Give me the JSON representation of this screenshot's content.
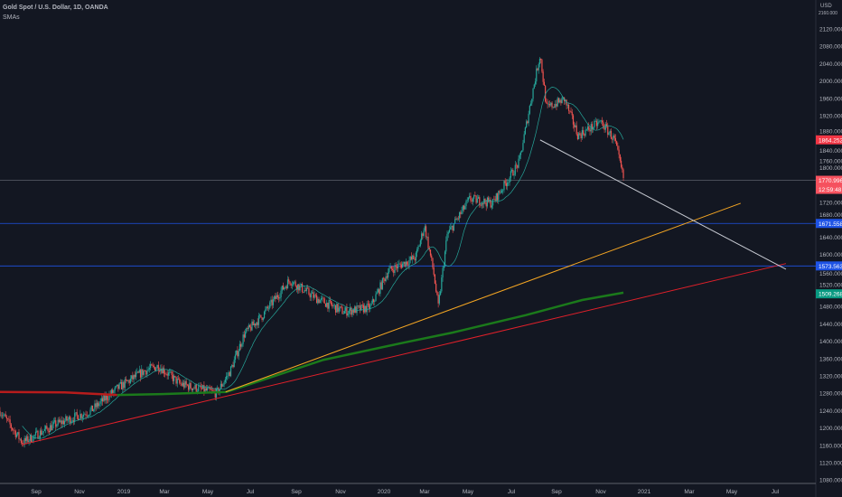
{
  "header": {
    "title": "Gold Spot / U.S. Dollar, 1D, OANDA",
    "indicator": "SMAs"
  },
  "axis": {
    "currency": "USD",
    "top_partial": "2160.000"
  },
  "chart_data": {
    "type": "candlestick",
    "title": "Gold Spot / U.S. Dollar, 1D, OANDA",
    "ylim": [
      1080,
      2120
    ],
    "yticks": [
      "2120.000",
      "2080.000",
      "2040.000",
      "2000.000",
      "1960.000",
      "1920.000",
      "1880.000",
      "1840.000",
      "1800.000",
      "1760.000",
      "1720.000",
      "1680.000",
      "1640.000",
      "1600.000",
      "1560.000",
      "1520.000",
      "1480.000",
      "1440.000",
      "1400.000",
      "1360.000",
      "1320.000",
      "1280.000",
      "1240.000",
      "1200.000",
      "1160.000",
      "1120.000",
      "1080.000"
    ],
    "xticks": [
      "Sep",
      "Nov",
      "2019",
      "Mar",
      "May",
      "Jul",
      "Sep",
      "Nov",
      "2020",
      "Mar",
      "May",
      "Jul",
      "Sep",
      "Nov",
      "2021",
      "Mar",
      "May",
      "Jul"
    ],
    "price_path": [
      [
        0,
        1239
      ],
      [
        0.028,
        1166
      ],
      [
        0.067,
        1207
      ],
      [
        0.112,
        1239
      ],
      [
        0.145,
        1291
      ],
      [
        0.179,
        1332
      ],
      [
        0.196,
        1343
      ],
      [
        0.223,
        1301
      ],
      [
        0.268,
        1280
      ],
      [
        0.285,
        1332
      ],
      [
        0.302,
        1416
      ],
      [
        0.324,
        1458
      ],
      [
        0.358,
        1541
      ],
      [
        0.391,
        1499
      ],
      [
        0.425,
        1468
      ],
      [
        0.458,
        1478
      ],
      [
        0.48,
        1562
      ],
      [
        0.514,
        1593
      ],
      [
        0.525,
        1666
      ],
      [
        0.536,
        1562
      ],
      [
        0.542,
        1478
      ],
      [
        0.553,
        1645
      ],
      [
        0.581,
        1728
      ],
      [
        0.609,
        1718
      ],
      [
        0.642,
        1812
      ],
      [
        0.659,
        1978
      ],
      [
        0.668,
        2062
      ],
      [
        0.676,
        1937
      ],
      [
        0.698,
        1958
      ],
      [
        0.715,
        1874
      ],
      [
        0.743,
        1906
      ],
      [
        0.76,
        1864
      ],
      [
        0.771,
        1776
      ]
    ],
    "trendlines": [
      {
        "name": "yellow-trendline",
        "color": "#f5a623",
        "from": [
          0.279,
          1283
        ],
        "to": [
          0.916,
          1718
        ]
      },
      {
        "name": "red-trendline",
        "color": "#e0202a",
        "from": [
          0.028,
          1162
        ],
        "to": [
          0.972,
          1579
        ]
      },
      {
        "name": "white-trendline",
        "color": "#c8cbd3",
        "from": [
          0.668,
          1864
        ],
        "to": [
          0.972,
          1566
        ]
      }
    ],
    "sma_long": {
      "color_before": "#b71c1c",
      "color_after": "#1b7a1b",
      "points": [
        [
          0,
          1283
        ],
        [
          0.08,
          1282
        ],
        [
          0.145,
          1276
        ],
        [
          0.2,
          1278
        ],
        [
          0.28,
          1283
        ],
        [
          0.4,
          1357
        ],
        [
          0.5,
          1397
        ],
        [
          0.56,
          1420
        ],
        [
          0.65,
          1460
        ],
        [
          0.72,
          1495
        ],
        [
          0.771,
          1512
        ]
      ]
    },
    "levels": [
      {
        "label": "1864.252",
        "value": 1864.252,
        "color": "#f23645",
        "line": false
      },
      {
        "label": "1770.996",
        "value": 1770.996,
        "color": "#f7525f",
        "line": true,
        "linecolor": "#5d606b"
      },
      {
        "label": "1671.558",
        "value": 1671.558,
        "color": "#1e53e5",
        "line": true,
        "linecolor": "#1e53e5"
      },
      {
        "label": "1573.563",
        "value": 1573.563,
        "color": "#1e53e5",
        "line": true,
        "linecolor": "#1e53e5"
      },
      {
        "label": "1509.268",
        "value": 1509.268,
        "color": "#089981",
        "line": false
      }
    ],
    "countdown": "12:59:48"
  }
}
